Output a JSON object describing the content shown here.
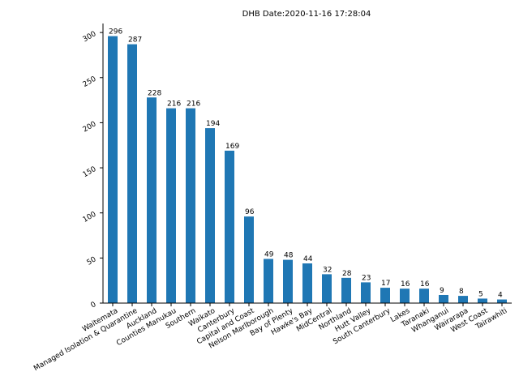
{
  "chart_data": {
    "type": "bar",
    "title": "DHB  Date:2020-11-16 17:28:04",
    "xlabel": "",
    "ylabel": "",
    "ylim": [
      0,
      310
    ],
    "yticks": [
      0,
      50,
      100,
      150,
      200,
      250,
      300
    ],
    "bar_color": "#1f77b4",
    "grid": false,
    "legend": "none",
    "categories": [
      "Waitemata",
      "Managed Isolation & Quarantine",
      "Auckland",
      "Counties Manukau",
      "Southern",
      "Waikato",
      "Canterbury",
      "Capital and Coast",
      "Nelson Marlborough",
      "Bay of Plenty",
      "Hawke's Bay",
      "MidCentral",
      "Northland",
      "Hutt Valley",
      "South Canterbury",
      "Lakes",
      "Taranaki",
      "Whanganui",
      "Wairarapa",
      "West Coast",
      "Tairawhiti"
    ],
    "values": [
      296,
      287,
      228,
      216,
      216,
      194,
      169,
      96,
      49,
      48,
      44,
      32,
      28,
      23,
      17,
      16,
      16,
      9,
      8,
      5,
      4
    ]
  }
}
